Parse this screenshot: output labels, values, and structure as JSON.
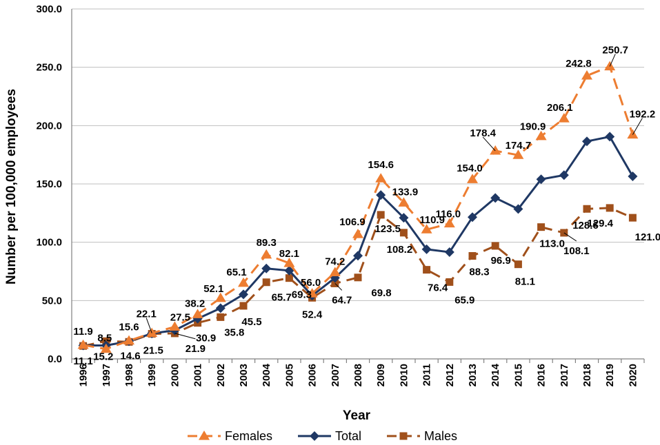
{
  "chart_data": {
    "type": "line",
    "title": "",
    "xlabel": "Year",
    "ylabel": "Number per 100,000 employees",
    "ylim": [
      0,
      300
    ],
    "y_ticks": [
      "0.0",
      "50.0",
      "100.0",
      "150.0",
      "200.0",
      "250.0",
      "300.0"
    ],
    "grid": true,
    "legend_position": "bottom",
    "categories": [
      "1996",
      "1997",
      "1998",
      "1999",
      "2000",
      "2001",
      "2002",
      "2003",
      "2004",
      "2005",
      "2006",
      "2007",
      "2008",
      "2009",
      "2010",
      "2011",
      "2012",
      "2013",
      "2014",
      "2015",
      "2016",
      "2017",
      "2018",
      "2019",
      "2020"
    ],
    "series": [
      {
        "name": "Females",
        "color": "#ED7D31",
        "marker": "triangle",
        "line_style": "dashed",
        "values": [
          11.9,
          8.5,
          15.6,
          22.1,
          27.5,
          38.2,
          52.1,
          65.1,
          89.3,
          82.1,
          56.0,
          74.2,
          106.9,
          154.6,
          133.9,
          110.9,
          116.0,
          154.0,
          178.4,
          174.7,
          190.9,
          206.1,
          242.8,
          250.7,
          192.2
        ],
        "labels": [
          "11.9",
          "8.5",
          "15.6",
          "22.1",
          "27.5",
          "38.2",
          "52.1",
          "65.1",
          "89.3",
          "82.1",
          "56.0",
          "74.2",
          "106.9",
          "154.6",
          "133.9",
          "110.9",
          "116.0",
          "154.0",
          "178.4",
          "174.7",
          "190.9",
          "206.1",
          "242.8",
          "250.7",
          "192.2"
        ]
      },
      {
        "name": "Total",
        "color": "#1F3864",
        "marker": "diamond",
        "line_style": "solid",
        "values": [
          11.5,
          11.5,
          15.1,
          21.8,
          24.5,
          34.5,
          43.5,
          55.3,
          77.5,
          75.7,
          54.2,
          69.5,
          88.4,
          140.5,
          121.0,
          94.0,
          91.5,
          121.5,
          138.0,
          128.5,
          154.0,
          157.5,
          186.5,
          190.5,
          156.5
        ],
        "labels": []
      },
      {
        "name": "Males",
        "color": "#A0501B",
        "marker": "square",
        "line_style": "dashed",
        "values": [
          11.1,
          15.2,
          14.6,
          21.5,
          21.9,
          30.9,
          35.8,
          45.5,
          65.7,
          69.3,
          52.4,
          64.7,
          69.8,
          123.5,
          108.2,
          76.4,
          65.9,
          88.3,
          96.9,
          81.1,
          113.0,
          108.1,
          128.6,
          129.4,
          121.0
        ],
        "labels": [
          "11.1",
          "15.2",
          "14.6",
          "21.5",
          "21.9",
          "30.9",
          "35.8",
          "45.5",
          "65.7",
          "69.3",
          "52.4",
          "64.7",
          "69.8",
          "123.5",
          "108.2",
          "76.4",
          "65.9",
          "88.3",
          "96.9",
          "81.1",
          "113.0",
          "108.1",
          "128.6",
          "129.4",
          "121.0"
        ]
      }
    ]
  }
}
